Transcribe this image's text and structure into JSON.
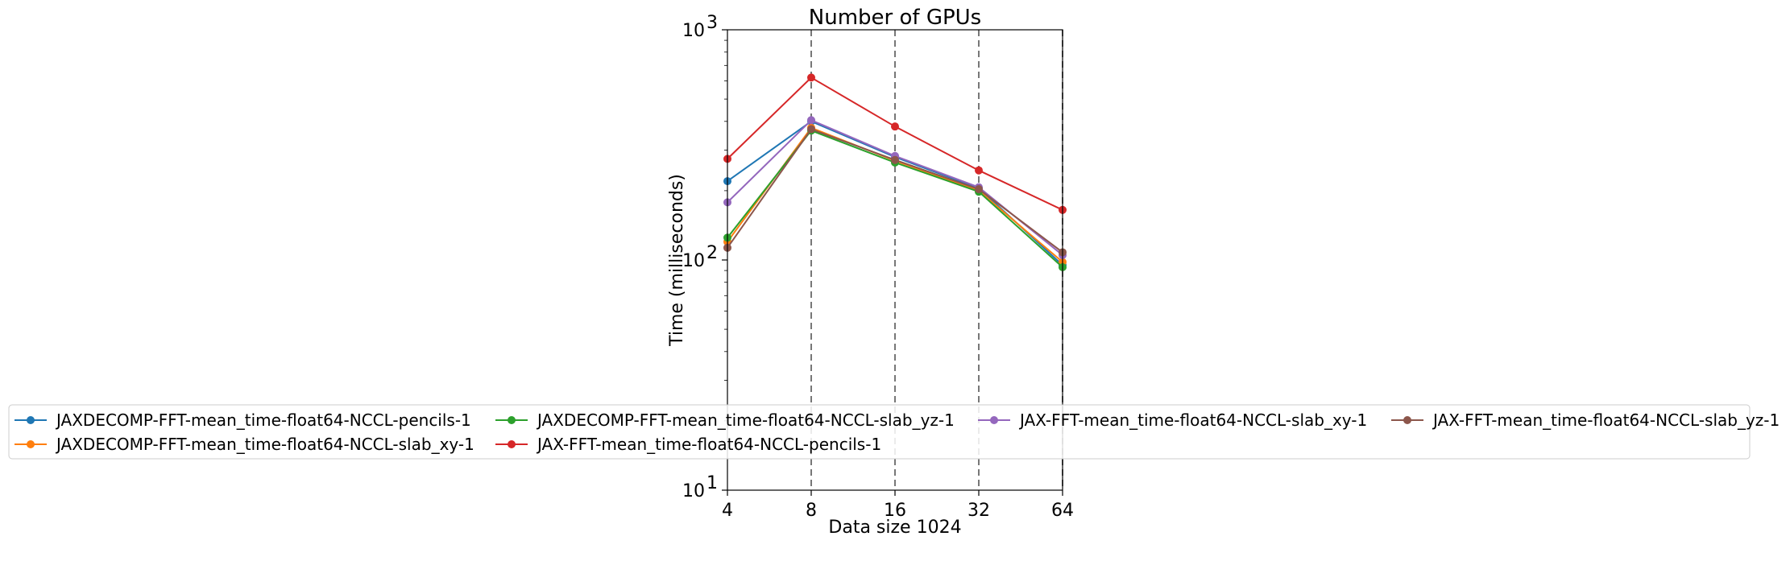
{
  "chart_data": {
    "type": "line",
    "title": "Number of GPUs",
    "xlabel": "Data size 1024",
    "ylabel": "Time (milliseconds)",
    "x": [
      4,
      8,
      16,
      32,
      64
    ],
    "x_tick_labels": [
      "4",
      "8",
      "16",
      "32",
      "64"
    ],
    "x_scale": "log2",
    "y_scale": "log",
    "ylim": [
      10,
      1000
    ],
    "y_tick_labels": [
      {
        "value": 10,
        "base": "10",
        "exp": "1"
      },
      {
        "value": 100,
        "base": "10",
        "exp": "2"
      },
      {
        "value": 1000,
        "base": "10",
        "exp": "3"
      }
    ],
    "vlines_at": [
      8,
      16,
      32,
      64
    ],
    "legend_position": "lower-center",
    "legend_columns": 4,
    "series": [
      {
        "name": "JAXDECOMP-FFT-mean_time-float64-NCCL-pencils-1",
        "color": "#1f77b4",
        "values": [
          220,
          400,
          280,
          205,
          95
        ]
      },
      {
        "name": "JAXDECOMP-FFT-mean_time-float64-NCCL-slab_xy-1",
        "color": "#ff7f0e",
        "values": [
          120,
          375,
          270,
          200,
          98
        ]
      },
      {
        "name": "JAXDECOMP-FFT-mean_time-float64-NCCL-slab_yz-1",
        "color": "#2ca02c",
        "values": [
          125,
          365,
          265,
          198,
          93
        ]
      },
      {
        "name": "JAX-FFT-mean_time-float64-NCCL-pencils-1",
        "color": "#d62728",
        "values": [
          275,
          620,
          380,
          245,
          165
        ]
      },
      {
        "name": "JAX-FFT-mean_time-float64-NCCL-slab_xy-1",
        "color": "#9467bd",
        "values": [
          178,
          405,
          283,
          207,
          105
        ]
      },
      {
        "name": "JAX-FFT-mean_time-float64-NCCL-slab_yz-1",
        "color": "#8c564b",
        "values": [
          113,
          370,
          272,
          203,
          108
        ]
      }
    ]
  }
}
